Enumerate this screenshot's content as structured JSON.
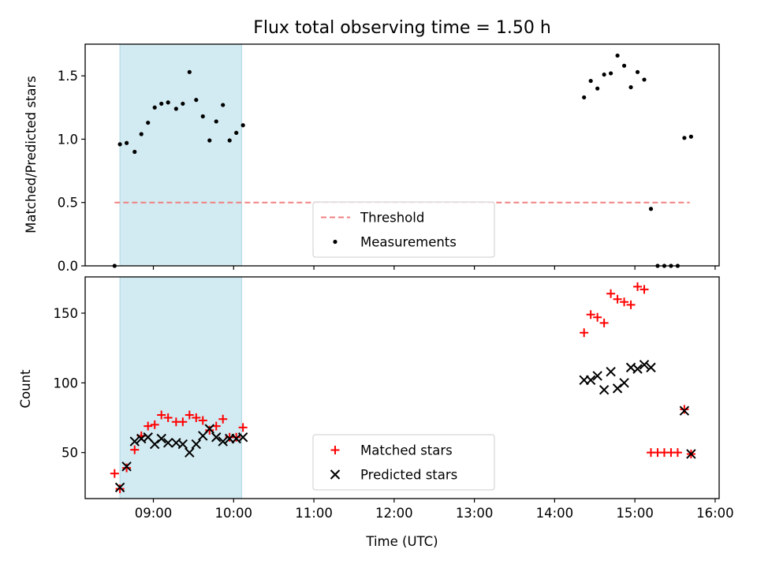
{
  "figure": {
    "title": "Flux total observing time = 1.50 h",
    "xlabel": "Time (UTC)",
    "x_tick_labels": [
      "09:00",
      "10:00",
      "11:00",
      "12:00",
      "13:00",
      "14:00",
      "15:00",
      "16:00"
    ],
    "shaded_interval": {
      "start": "08:35",
      "end": "10:06",
      "color": "#add8e6"
    }
  },
  "chart_data": [
    {
      "type": "scatter",
      "panel": "top",
      "ylabel": "Matched/Predicted stars",
      "ylim": [
        0,
        1.75
      ],
      "yticks": [
        0.0,
        0.5,
        1.0,
        1.5
      ],
      "ytick_labels": [
        "0.0",
        "0.5",
        "1.0",
        "1.5"
      ],
      "xlim": [
        "08:09",
        "16:03"
      ],
      "grid": false,
      "legend_location": "lower center",
      "threshold": {
        "name": "Threshold",
        "value": 0.5,
        "x_range": [
          "08:31",
          "15:41"
        ],
        "color": "#f08080",
        "style": "dashed"
      },
      "series": [
        {
          "name": "Measurements",
          "marker": "dot",
          "color": "#000000",
          "x": [
            "08:31",
            "08:35",
            "08:40",
            "08:46",
            "08:51",
            "08:56",
            "09:01",
            "09:06",
            "09:11",
            "09:17",
            "09:22",
            "09:27",
            "09:32",
            "09:37",
            "09:42",
            "09:47",
            "09:52",
            "09:57",
            "10:02",
            "10:07",
            "14:22",
            "14:27",
            "14:32",
            "14:37",
            "14:42",
            "14:47",
            "14:52",
            "14:57",
            "15:02",
            "15:07",
            "15:12",
            "15:17",
            "15:22",
            "15:27",
            "15:32",
            "15:37",
            "15:42"
          ],
          "y": [
            0.0,
            0.96,
            0.97,
            0.9,
            1.04,
            1.13,
            1.25,
            1.28,
            1.29,
            1.24,
            1.28,
            1.53,
            1.31,
            1.18,
            0.99,
            1.14,
            1.27,
            0.99,
            1.05,
            1.11,
            1.33,
            1.46,
            1.4,
            1.51,
            1.52,
            1.66,
            1.58,
            1.41,
            1.53,
            1.47,
            0.45,
            0.0,
            0.0,
            0.0,
            0.0,
            1.01,
            1.02
          ]
        }
      ]
    },
    {
      "type": "scatter",
      "panel": "bottom",
      "ylabel": "Count",
      "ylim": [
        17,
        176
      ],
      "yticks": [
        50,
        100,
        150
      ],
      "ytick_labels": [
        "50",
        "100",
        "150"
      ],
      "xlim": [
        "08:09",
        "16:03"
      ],
      "grid": false,
      "legend_location": "lower center",
      "series": [
        {
          "name": "Matched stars",
          "marker": "plus",
          "color": "#ff0000",
          "x": [
            "08:31",
            "08:35",
            "08:40",
            "08:46",
            "08:51",
            "08:56",
            "09:01",
            "09:06",
            "09:11",
            "09:17",
            "09:22",
            "09:27",
            "09:32",
            "09:37",
            "09:42",
            "09:47",
            "09:52",
            "09:57",
            "10:02",
            "10:07",
            "14:22",
            "14:27",
            "14:32",
            "14:37",
            "14:42",
            "14:47",
            "14:52",
            "14:57",
            "15:02",
            "15:07",
            "15:12",
            "15:17",
            "15:22",
            "15:27",
            "15:32",
            "15:37",
            "15:42"
          ],
          "y": [
            35,
            24,
            39,
            52,
            62,
            69,
            70,
            77,
            75,
            72,
            72,
            77,
            75,
            73,
            66,
            69,
            74,
            61,
            61,
            68,
            136,
            149,
            147,
            143,
            164,
            160,
            158,
            156,
            169,
            167,
            50,
            50,
            50,
            50,
            50,
            81,
            49
          ]
        },
        {
          "name": "Predicted stars",
          "marker": "x",
          "color": "#000000",
          "x": [
            "08:35",
            "08:40",
            "08:46",
            "08:51",
            "08:56",
            "09:01",
            "09:06",
            "09:11",
            "09:17",
            "09:22",
            "09:27",
            "09:32",
            "09:37",
            "09:42",
            "09:47",
            "09:52",
            "09:57",
            "10:02",
            "10:07",
            "14:22",
            "14:27",
            "14:32",
            "14:37",
            "14:42",
            "14:47",
            "14:52",
            "14:57",
            "15:02",
            "15:07",
            "15:12",
            "15:37",
            "15:42"
          ],
          "y": [
            25,
            40,
            58,
            60,
            61,
            56,
            60,
            57,
            57,
            56,
            50,
            56,
            62,
            67,
            61,
            58,
            60,
            60,
            61,
            102,
            102,
            105,
            95,
            108,
            96,
            100,
            111,
            110,
            113,
            111,
            80,
            49
          ]
        }
      ]
    }
  ]
}
